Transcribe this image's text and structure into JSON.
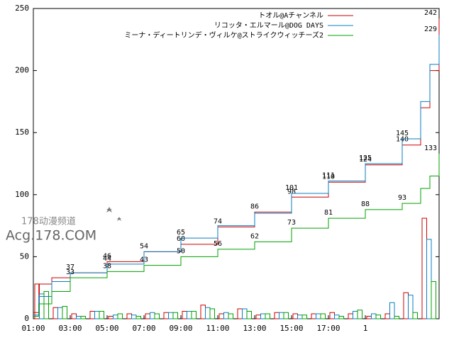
{
  "chart_data": {
    "type": "line",
    "step": true,
    "xlim": [
      1,
      23
    ],
    "ylim": [
      0,
      250
    ],
    "xticks": [
      {
        "value": 1,
        "label": "01:00"
      },
      {
        "value": 3,
        "label": "03:00"
      },
      {
        "value": 5,
        "label": "05:00"
      },
      {
        "value": 7,
        "label": "07:00"
      },
      {
        "value": 9,
        "label": "09:00"
      },
      {
        "value": 11,
        "label": "11:00"
      },
      {
        "value": 13,
        "label": "13:00"
      },
      {
        "value": 15,
        "label": "15:00"
      },
      {
        "value": 17,
        "label": "17:00"
      },
      {
        "value": 19,
        "label": "1"
      }
    ],
    "yticks": [
      0,
      50,
      100,
      150,
      200,
      250
    ],
    "legend": "top-right",
    "series": [
      {
        "name": "トオル@Aチャンネル",
        "color": "#cc0000",
        "x": [
          1,
          1.3,
          2,
          3,
          5,
          7,
          9,
          11,
          13,
          15,
          17,
          19,
          21,
          22,
          22.5,
          23
        ],
        "values": [
          5,
          28,
          33,
          37,
          46,
          54,
          60,
          74,
          86,
          98,
          110,
          124,
          140,
          170,
          200,
          242
        ],
        "value_labels": [
          null,
          null,
          null,
          "37",
          "46",
          "54",
          "60",
          "74",
          "86",
          "98",
          "110",
          "124",
          "140",
          null,
          null,
          "242"
        ]
      },
      {
        "name": "リコッタ・エルマール@DOG DAYS",
        "color": "#0a7ec2",
        "x": [
          1,
          1.3,
          2,
          3,
          5,
          7,
          9,
          11,
          13,
          15,
          17,
          19,
          21,
          22,
          22.5,
          23
        ],
        "values": [
          3,
          18,
          30,
          37,
          44,
          54,
          65,
          75,
          85,
          101,
          111,
          125,
          145,
          175,
          205,
          229
        ],
        "value_labels": [
          null,
          null,
          null,
          null,
          "44",
          null,
          "65",
          null,
          null,
          "101",
          "111",
          "125",
          "145",
          null,
          null,
          "229"
        ]
      },
      {
        "name": "ミーナ・ディートリンデ・ヴィルケ@ストライクウィッチーズ2",
        "color": "#00a000",
        "x": [
          1,
          1.3,
          2,
          3,
          5,
          7,
          9,
          11,
          13,
          15,
          17,
          19,
          21,
          22,
          22.5,
          23
        ],
        "values": [
          2,
          12,
          22,
          33,
          38,
          43,
          50,
          56,
          62,
          73,
          81,
          88,
          93,
          105,
          115,
          133
        ],
        "value_labels": [
          null,
          null,
          null,
          "33",
          "38",
          "43",
          "50",
          "56",
          "62",
          "73",
          "81",
          "88",
          "93",
          null,
          null,
          "133"
        ]
      }
    ],
    "bars": {
      "x": [
        1,
        2,
        3,
        4,
        5,
        6,
        7,
        8,
        9,
        10,
        11,
        12,
        13,
        14,
        15,
        16,
        17,
        18,
        19,
        20,
        21,
        22
      ],
      "series": [
        [
          28,
          9,
          4,
          6,
          2,
          4,
          4,
          5,
          6,
          11,
          4,
          8,
          3,
          5,
          4,
          4,
          5,
          4,
          2,
          4,
          21,
          81
        ],
        [
          20,
          9,
          2,
          6,
          3,
          3,
          5,
          5,
          6,
          9,
          5,
          8,
          4,
          5,
          3,
          4,
          3,
          6,
          4,
          13,
          19,
          64
        ],
        [
          22,
          10,
          2,
          6,
          4,
          2,
          4,
          5,
          6,
          8,
          4,
          6,
          4,
          5,
          3,
          4,
          2,
          7,
          3,
          2,
          5,
          30
        ]
      ]
    },
    "watermark": {
      "line1": "178动漫频道",
      "line2": "Acg.178.COM"
    }
  }
}
